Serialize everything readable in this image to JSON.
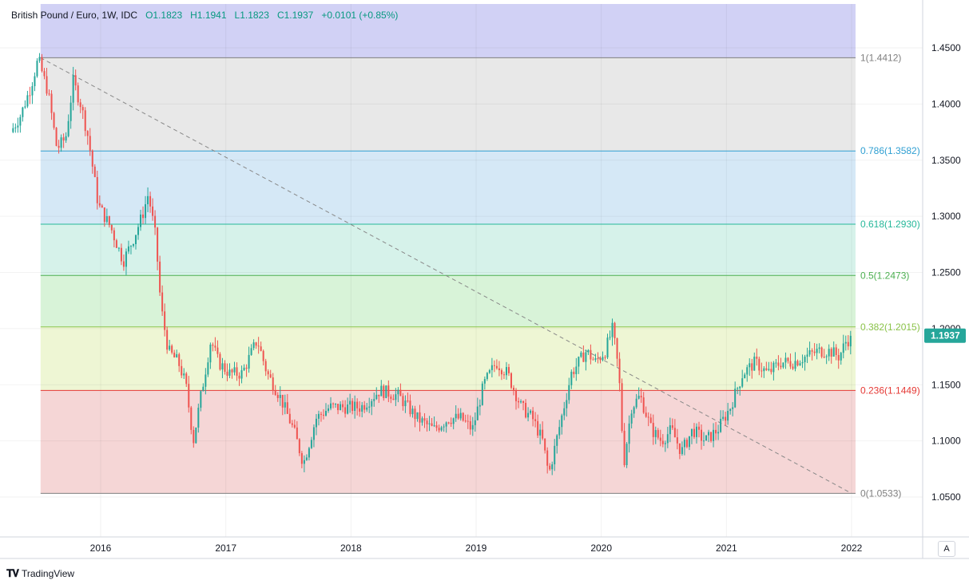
{
  "legend": {
    "symbol": "British Pound / Euro, 1W, IDC",
    "open": "O1.1823",
    "high": "H1.1941",
    "low": "L1.1823",
    "close": "C1.1937",
    "change": "+0.0101 (+0.85%)"
  },
  "brand": {
    "name": "TradingView"
  },
  "scale_mode": "A",
  "colors": {
    "up": "#26a69a",
    "down": "#ef5350",
    "fib_top_zone": "#d1d1f5",
    "fib_zones": [
      "#e8e8e8",
      "#d5e8f6",
      "#d6f2ea",
      "#d8f3d8",
      "#eef6d4",
      "#f5d6d6"
    ],
    "fib_lines": [
      "#7f7f7f",
      "#2f9fd2",
      "#26b89a",
      "#4caf50",
      "#8bc34a",
      "#e53935",
      "#7f7f7f"
    ]
  },
  "chart_data": {
    "type": "candlestick",
    "title": "British Pound / Euro, 1W, IDC",
    "x_axis": {
      "ticks": [
        "2016",
        "2017",
        "2018",
        "2019",
        "2020",
        "2021",
        "2022"
      ],
      "range": [
        2015.3,
        2022.5
      ]
    },
    "y_axis": {
      "ticks": [
        "1.4500",
        "1.4000",
        "1.3500",
        "1.3000",
        "1.2500",
        "1.2000",
        "1.1500",
        "1.1000",
        "1.0500"
      ],
      "range": [
        1.025,
        1.48
      ]
    },
    "last_price": {
      "value": 1.1937,
      "label": "1.1937"
    },
    "fibonacci": {
      "from": {
        "x": 2015.52,
        "y": 1.4412
      },
      "to": {
        "x": 2022.0,
        "y": 1.0533
      },
      "levels": [
        {
          "ratio": 1,
          "price": 1.4412,
          "label": "1(1.4412)"
        },
        {
          "ratio": 0.786,
          "price": 1.3582,
          "label": "0.786(1.3582)"
        },
        {
          "ratio": 0.618,
          "price": 1.293,
          "label": "0.618(1.2930)"
        },
        {
          "ratio": 0.5,
          "price": 1.2473,
          "label": "0.5(1.2473)"
        },
        {
          "ratio": 0.382,
          "price": 1.2015,
          "label": "0.382(1.2015)"
        },
        {
          "ratio": 0.236,
          "price": 1.1449,
          "label": "0.236(1.1449)"
        },
        {
          "ratio": 0,
          "price": 1.0533,
          "label": "0(1.0533)"
        }
      ]
    },
    "path_points": [
      [
        2015.3,
        1.375
      ],
      [
        2015.38,
        1.39
      ],
      [
        2015.46,
        1.415
      ],
      [
        2015.52,
        1.44
      ],
      [
        2015.6,
        1.41
      ],
      [
        2015.67,
        1.36
      ],
      [
        2015.74,
        1.37
      ],
      [
        2015.8,
        1.42
      ],
      [
        2015.86,
        1.4
      ],
      [
        2015.92,
        1.37
      ],
      [
        2016.0,
        1.31
      ],
      [
        2016.1,
        1.29
      ],
      [
        2016.2,
        1.26
      ],
      [
        2016.28,
        1.28
      ],
      [
        2016.35,
        1.3
      ],
      [
        2016.4,
        1.32
      ],
      [
        2016.46,
        1.28
      ],
      [
        2016.5,
        1.22
      ],
      [
        2016.56,
        1.18
      ],
      [
        2016.64,
        1.17
      ],
      [
        2016.7,
        1.15
      ],
      [
        2016.76,
        1.1
      ],
      [
        2016.82,
        1.14
      ],
      [
        2016.9,
        1.19
      ],
      [
        2016.96,
        1.17
      ],
      [
        2017.05,
        1.16
      ],
      [
        2017.15,
        1.16
      ],
      [
        2017.27,
        1.19
      ],
      [
        2017.35,
        1.16
      ],
      [
        2017.45,
        1.14
      ],
      [
        2017.56,
        1.11
      ],
      [
        2017.64,
        1.08
      ],
      [
        2017.74,
        1.12
      ],
      [
        2017.85,
        1.13
      ],
      [
        2017.95,
        1.13
      ],
      [
        2018.1,
        1.13
      ],
      [
        2018.25,
        1.145
      ],
      [
        2018.4,
        1.14
      ],
      [
        2018.55,
        1.12
      ],
      [
        2018.68,
        1.11
      ],
      [
        2018.8,
        1.12
      ],
      [
        2018.9,
        1.12
      ],
      [
        2018.99,
        1.11
      ],
      [
        2019.08,
        1.15
      ],
      [
        2019.18,
        1.17
      ],
      [
        2019.27,
        1.16
      ],
      [
        2019.38,
        1.13
      ],
      [
        2019.47,
        1.12
      ],
      [
        2019.55,
        1.1
      ],
      [
        2019.6,
        1.07
      ],
      [
        2019.68,
        1.11
      ],
      [
        2019.78,
        1.16
      ],
      [
        2019.9,
        1.18
      ],
      [
        2019.97,
        1.17
      ],
      [
        2020.05,
        1.18
      ],
      [
        2020.11,
        1.2
      ],
      [
        2020.16,
        1.16
      ],
      [
        2020.2,
        1.08
      ],
      [
        2020.26,
        1.13
      ],
      [
        2020.33,
        1.14
      ],
      [
        2020.42,
        1.11
      ],
      [
        2020.5,
        1.1
      ],
      [
        2020.58,
        1.11
      ],
      [
        2020.66,
        1.09
      ],
      [
        2020.75,
        1.11
      ],
      [
        2020.85,
        1.1
      ],
      [
        2020.95,
        1.11
      ],
      [
        2021.05,
        1.13
      ],
      [
        2021.15,
        1.16
      ],
      [
        2021.25,
        1.17
      ],
      [
        2021.35,
        1.16
      ],
      [
        2021.45,
        1.17
      ],
      [
        2021.55,
        1.17
      ],
      [
        2021.65,
        1.175
      ],
      [
        2021.75,
        1.18
      ],
      [
        2021.85,
        1.18
      ],
      [
        2021.92,
        1.175
      ],
      [
        2021.98,
        1.19
      ]
    ]
  }
}
